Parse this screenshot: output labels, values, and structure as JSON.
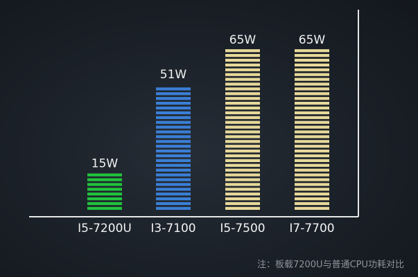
{
  "chart_data": {
    "type": "bar",
    "categories": [
      "I5-7200U",
      "I3-7100",
      "I5-7500",
      "I7-7700"
    ],
    "values": [
      15,
      51,
      65,
      65
    ],
    "value_labels": [
      "15W",
      "51W",
      "65W",
      "65W"
    ],
    "colors": [
      "#21c33d",
      "#3a7fd6",
      "#e8d99a",
      "#e8d99a"
    ],
    "ylim": [
      0,
      65
    ],
    "grid": false,
    "legend": "none",
    "title": "",
    "xlabel": "",
    "ylabel": ""
  },
  "footnote": "注：板载7200U与普通CPU功耗对比"
}
